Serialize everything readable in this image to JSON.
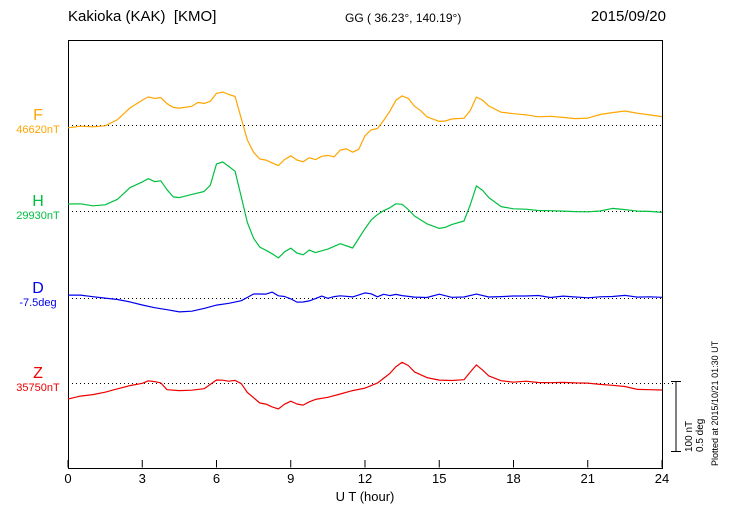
{
  "header": {
    "station": "Kakioka (KAK)  [KMO]",
    "coords": "GG ( 36.23°, 140.19°)",
    "date": "2015/09/20"
  },
  "axis": {
    "x_label": "U T (hour)",
    "x_ticks": [
      0,
      3,
      6,
      9,
      12,
      15,
      18,
      21,
      24
    ],
    "x_range": [
      0,
      24
    ]
  },
  "side": {
    "scale_labels": [
      "100 nT",
      "0.5 deg"
    ],
    "plotted_at": "Plotted at 2015/10/21 01:30 UT"
  },
  "chart_data": {
    "type": "line",
    "title": "Kakioka (KAK) [KMO] magnetogram, 2015/09/20",
    "xlabel": "U T (hour)",
    "x_range": [
      0,
      24
    ],
    "x_ticks": [
      0,
      3,
      6,
      9,
      12,
      15,
      18,
      21,
      24
    ],
    "grid": "dotted horizontal baseline per component",
    "scale_per_division": {
      "field_nT": 100,
      "declination_deg": 0.5
    },
    "points_format": "[hour_UT, offset_from_baseline]",
    "series": [
      {
        "name": "F",
        "color": "#FFA500",
        "unit": "nT",
        "baseline_value": 46620,
        "baseline_label": "46620nT",
        "points": [
          [
            0,
            -4
          ],
          [
            0.5,
            -3
          ],
          [
            1,
            -3
          ],
          [
            1.5,
            -1
          ],
          [
            2,
            7
          ],
          [
            2.5,
            24
          ],
          [
            3,
            37
          ],
          [
            3.25,
            40
          ],
          [
            3.5,
            39
          ],
          [
            3.75,
            40
          ],
          [
            4,
            30
          ],
          [
            4.25,
            26
          ],
          [
            4.5,
            24
          ],
          [
            5,
            27
          ],
          [
            5.25,
            31
          ],
          [
            5.5,
            30
          ],
          [
            5.75,
            34
          ],
          [
            6,
            44
          ],
          [
            6.25,
            47
          ],
          [
            6.5,
            44
          ],
          [
            6.75,
            40
          ],
          [
            7,
            10
          ],
          [
            7.25,
            -21
          ],
          [
            7.5,
            -39
          ],
          [
            7.75,
            -47
          ],
          [
            8,
            -50
          ],
          [
            8.25,
            -54
          ],
          [
            8.5,
            -57
          ],
          [
            8.75,
            -50
          ],
          [
            9,
            -44
          ],
          [
            9.25,
            -50
          ],
          [
            9.5,
            -54
          ],
          [
            9.75,
            -47
          ],
          [
            10,
            -50
          ],
          [
            10.25,
            -46
          ],
          [
            10.5,
            -43
          ],
          [
            10.75,
            -46
          ],
          [
            11,
            -36
          ],
          [
            11.25,
            -33
          ],
          [
            11.5,
            -39
          ],
          [
            11.75,
            -34
          ],
          [
            12,
            -14
          ],
          [
            12.25,
            -7
          ],
          [
            12.5,
            -4
          ],
          [
            12.75,
            7
          ],
          [
            13,
            19
          ],
          [
            13.25,
            36
          ],
          [
            13.5,
            41
          ],
          [
            13.75,
            37
          ],
          [
            14,
            27
          ],
          [
            14.25,
            19
          ],
          [
            14.5,
            11
          ],
          [
            15,
            4
          ],
          [
            15.25,
            6
          ],
          [
            15.5,
            9
          ],
          [
            16,
            11
          ],
          [
            16.25,
            21
          ],
          [
            16.5,
            40
          ],
          [
            16.75,
            37
          ],
          [
            17,
            27
          ],
          [
            17.5,
            19
          ],
          [
            18,
            16
          ],
          [
            18.5,
            13
          ],
          [
            19,
            11
          ],
          [
            19.5,
            13
          ],
          [
            20,
            11
          ],
          [
            20.5,
            9
          ],
          [
            21,
            11
          ],
          [
            21.5,
            16
          ],
          [
            22,
            17
          ],
          [
            22.5,
            19
          ],
          [
            23,
            17
          ],
          [
            23.5,
            14
          ],
          [
            24,
            11
          ]
        ]
      },
      {
        "name": "H",
        "color": "#00C040",
        "unit": "nT",
        "baseline_value": 29930,
        "baseline_label": "29930nT",
        "points": [
          [
            0,
            10
          ],
          [
            0.5,
            9
          ],
          [
            1,
            7
          ],
          [
            1.5,
            9
          ],
          [
            2,
            16
          ],
          [
            2.5,
            33
          ],
          [
            3,
            43
          ],
          [
            3.25,
            46
          ],
          [
            3.5,
            43
          ],
          [
            3.75,
            44
          ],
          [
            4,
            30
          ],
          [
            4.25,
            21
          ],
          [
            4.5,
            19
          ],
          [
            5,
            24
          ],
          [
            5.5,
            27
          ],
          [
            5.75,
            37
          ],
          [
            6,
            66
          ],
          [
            6.25,
            70
          ],
          [
            6.5,
            64
          ],
          [
            6.75,
            56
          ],
          [
            7,
            21
          ],
          [
            7.25,
            -16
          ],
          [
            7.5,
            -39
          ],
          [
            7.75,
            -50
          ],
          [
            8,
            -56
          ],
          [
            8.25,
            -61
          ],
          [
            8.5,
            -66
          ],
          [
            8.75,
            -59
          ],
          [
            9,
            -53
          ],
          [
            9.25,
            -60
          ],
          [
            9.5,
            -64
          ],
          [
            9.75,
            -56
          ],
          [
            10,
            -60
          ],
          [
            10.5,
            -54
          ],
          [
            11,
            -47
          ],
          [
            11.5,
            -53
          ],
          [
            12,
            -24
          ],
          [
            12.25,
            -13
          ],
          [
            12.5,
            -4
          ],
          [
            12.75,
            1
          ],
          [
            13,
            4
          ],
          [
            13.25,
            11
          ],
          [
            13.5,
            9
          ],
          [
            13.75,
            1
          ],
          [
            14,
            -7
          ],
          [
            14.5,
            -19
          ],
          [
            15,
            -26
          ],
          [
            15.25,
            -23
          ],
          [
            15.5,
            -19
          ],
          [
            16,
            -13
          ],
          [
            16.25,
            9
          ],
          [
            16.5,
            36
          ],
          [
            16.75,
            31
          ],
          [
            17,
            19
          ],
          [
            17.5,
            7
          ],
          [
            18,
            3
          ],
          [
            18.5,
            1
          ],
          [
            19,
            0
          ],
          [
            19.5,
            1
          ],
          [
            20,
            0
          ],
          [
            20.5,
            -1
          ],
          [
            21,
            0
          ],
          [
            21.5,
            1
          ],
          [
            22,
            3
          ],
          [
            22.5,
            1
          ],
          [
            23,
            0
          ],
          [
            23.5,
            -1
          ],
          [
            24,
            -3
          ]
        ]
      },
      {
        "name": "D",
        "color": "#0000EE",
        "unit": "deg",
        "baseline_value": -7.5,
        "baseline_label": "-7.5deg",
        "points": [
          [
            0,
            0.021
          ],
          [
            0.5,
            0.014
          ],
          [
            1,
            0.007
          ],
          [
            1.5,
            0
          ],
          [
            2,
            -0.014
          ],
          [
            2.5,
            -0.029
          ],
          [
            3,
            -0.043
          ],
          [
            3.5,
            -0.064
          ],
          [
            4,
            -0.086
          ],
          [
            4.5,
            -0.1
          ],
          [
            5,
            -0.093
          ],
          [
            5.5,
            -0.079
          ],
          [
            6,
            -0.057
          ],
          [
            6.5,
            -0.036
          ],
          [
            7,
            -0.014
          ],
          [
            7.25,
            0.007
          ],
          [
            7.5,
            0.029
          ],
          [
            7.75,
            0.036
          ],
          [
            8,
            0.029
          ],
          [
            8.25,
            0.043
          ],
          [
            8.5,
            0.021
          ],
          [
            8.75,
            0.007
          ],
          [
            9,
            -0.007
          ],
          [
            9.25,
            -0.029
          ],
          [
            9.5,
            -0.036
          ],
          [
            9.75,
            -0.021
          ],
          [
            10,
            -0.007
          ],
          [
            10.25,
            0.007
          ],
          [
            10.5,
            0
          ],
          [
            10.75,
            0.007
          ],
          [
            11,
            0.014
          ],
          [
            11.5,
            0.007
          ],
          [
            12,
            0.043
          ],
          [
            12.25,
            0.029
          ],
          [
            12.5,
            0.014
          ],
          [
            12.75,
            0.029
          ],
          [
            13,
            0.014
          ],
          [
            13.25,
            0.029
          ],
          [
            13.5,
            0.014
          ],
          [
            14,
            0.007
          ],
          [
            14.5,
            0
          ],
          [
            15,
            0.021
          ],
          [
            15.5,
            0.007
          ],
          [
            16,
            0.014
          ],
          [
            16.5,
            0.029
          ],
          [
            17,
            0.007
          ],
          [
            17.5,
            0.014
          ],
          [
            18,
            0.014
          ],
          [
            18.5,
            0.007
          ],
          [
            19,
            0.014
          ],
          [
            19.5,
            0.007
          ],
          [
            20,
            0.014
          ],
          [
            21,
            0.007
          ],
          [
            21.5,
            0.014
          ],
          [
            22,
            0.007
          ],
          [
            22.5,
            0.014
          ],
          [
            23,
            0.007
          ],
          [
            23.5,
            0.007
          ],
          [
            24,
            0
          ]
        ]
      },
      {
        "name": "Z",
        "color": "#EE0000",
        "unit": "nT",
        "baseline_value": 35750,
        "baseline_label": "35750nT",
        "points": [
          [
            0,
            -23
          ],
          [
            0.5,
            -20
          ],
          [
            1,
            -17
          ],
          [
            1.5,
            -13
          ],
          [
            2,
            -9
          ],
          [
            2.5,
            -4
          ],
          [
            3,
            1
          ],
          [
            3.25,
            3
          ],
          [
            3.5,
            3
          ],
          [
            3.75,
            1
          ],
          [
            4,
            -10
          ],
          [
            4.5,
            -11
          ],
          [
            5,
            -10
          ],
          [
            5.5,
            -9
          ],
          [
            6,
            3
          ],
          [
            6.25,
            4
          ],
          [
            6.5,
            3
          ],
          [
            6.75,
            3
          ],
          [
            7,
            0
          ],
          [
            7.25,
            -13
          ],
          [
            7.5,
            -21
          ],
          [
            7.75,
            -27
          ],
          [
            8,
            -30
          ],
          [
            8.25,
            -34
          ],
          [
            8.5,
            -36
          ],
          [
            8.75,
            -31
          ],
          [
            9,
            -26
          ],
          [
            9.25,
            -30
          ],
          [
            9.5,
            -33
          ],
          [
            9.75,
            -27
          ],
          [
            10,
            -24
          ],
          [
            10.5,
            -20
          ],
          [
            11,
            -16
          ],
          [
            11.5,
            -11
          ],
          [
            12,
            -6
          ],
          [
            12.5,
            1
          ],
          [
            13,
            13
          ],
          [
            13.25,
            24
          ],
          [
            13.5,
            29
          ],
          [
            13.75,
            24
          ],
          [
            14,
            16
          ],
          [
            14.5,
            7
          ],
          [
            15,
            3
          ],
          [
            15.5,
            4
          ],
          [
            16,
            6
          ],
          [
            16.25,
            16
          ],
          [
            16.5,
            26
          ],
          [
            16.75,
            20
          ],
          [
            17,
            10
          ],
          [
            17.5,
            4
          ],
          [
            18,
            1
          ],
          [
            18.5,
            1
          ],
          [
            19,
            0
          ],
          [
            19.5,
            1
          ],
          [
            20,
            1
          ],
          [
            20.5,
            0
          ],
          [
            21,
            1
          ],
          [
            21.5,
            -1
          ],
          [
            22,
            -4
          ],
          [
            22.5,
            -6
          ],
          [
            23,
            -9
          ],
          [
            23.5,
            -10
          ],
          [
            24,
            -11
          ]
        ]
      }
    ]
  }
}
